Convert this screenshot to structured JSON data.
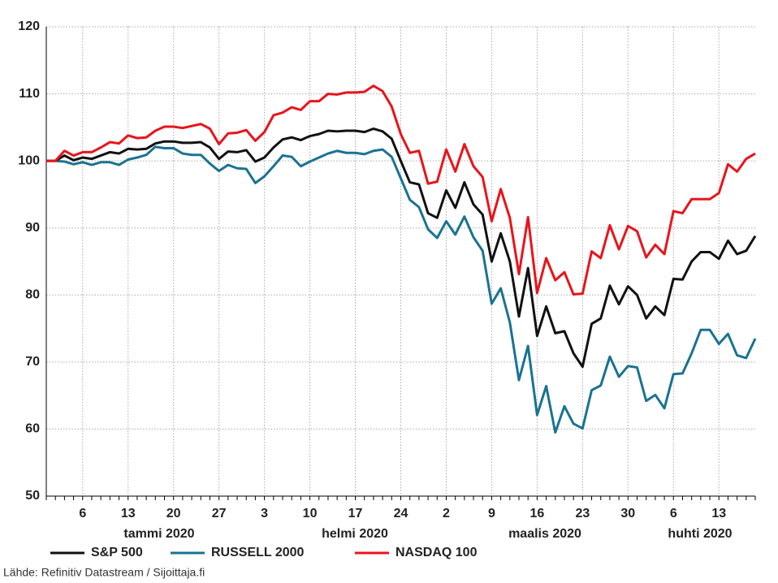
{
  "chart_data": {
    "type": "line",
    "categories": [
      null,
      null,
      null,
      null,
      "6",
      null,
      null,
      null,
      null,
      "13",
      null,
      null,
      null,
      null,
      "20",
      null,
      null,
      null,
      null,
      "27",
      null,
      null,
      null,
      null,
      "3",
      null,
      null,
      null,
      null,
      "10",
      null,
      null,
      null,
      null,
      "17",
      null,
      null,
      null,
      null,
      "24",
      null,
      null,
      null,
      null,
      "2",
      null,
      null,
      null,
      null,
      "9",
      null,
      null,
      null,
      null,
      "16",
      null,
      null,
      null,
      null,
      "23",
      null,
      null,
      null,
      null,
      "30",
      null,
      null,
      null,
      null,
      "6",
      null,
      null,
      null,
      null,
      "13",
      null,
      null,
      null,
      null
    ],
    "months": [
      "tammi 2020",
      "helmi 2020",
      "maalis 2020",
      "huhti 2020"
    ],
    "series": [
      {
        "name": "S&P 500",
        "color": "#111111",
        "values": [
          100,
          100,
          100.8,
          100.1,
          100.5,
          100.3,
          100.8,
          101.3,
          101.1,
          101.8,
          101.7,
          101.8,
          102.6,
          102.9,
          102.9,
          102.7,
          102.7,
          102.8,
          102.0,
          100.3,
          101.4,
          101.3,
          101.6,
          99.9,
          100.5,
          102.0,
          103.2,
          103.5,
          103.1,
          103.7,
          104.0,
          104.5,
          104.4,
          104.5,
          104.5,
          104.3,
          104.8,
          104.4,
          103.3,
          100.0,
          96.8,
          96.5,
          92.2,
          91.5,
          95.6,
          93.0,
          96.8,
          93.5,
          92.0,
          85.0,
          89.2,
          85.0,
          76.8,
          84.0,
          73.9,
          78.3,
          74.3,
          74.6,
          71.3,
          69.3,
          75.7,
          76.5,
          81.4,
          78.6,
          81.3,
          80.0,
          76.5,
          78.3,
          77.0,
          82.4,
          82.3,
          85.0,
          86.4,
          86.4,
          85.4,
          88.1,
          86.1,
          86.6,
          88.8
        ]
      },
      {
        "name": "RUSSELL 2000",
        "color": "#1a7390",
        "values": [
          100,
          100,
          99.9,
          99.5,
          99.8,
          99.4,
          99.8,
          99.8,
          99.4,
          100.2,
          100.5,
          100.9,
          102.1,
          101.9,
          101.9,
          101.1,
          100.9,
          100.9,
          99.6,
          98.5,
          99.4,
          98.9,
          98.8,
          96.7,
          97.7,
          99.2,
          100.8,
          100.6,
          99.2,
          99.9,
          100.5,
          101.1,
          101.5,
          101.2,
          101.2,
          101.0,
          101.5,
          101.7,
          100.6,
          97.4,
          94.2,
          93.1,
          89.8,
          88.5,
          91.0,
          89.0,
          91.7,
          88.6,
          86.6,
          78.7,
          81.0,
          75.9,
          67.3,
          72.4,
          62.1,
          66.4,
          59.5,
          63.4,
          60.8,
          60.1,
          65.8,
          66.5,
          70.8,
          67.8,
          69.4,
          69.2,
          64.2,
          65.1,
          63.1,
          68.2,
          68.3,
          71.3,
          74.8,
          74.8,
          72.7,
          74.2,
          71.0,
          70.6,
          73.5
        ]
      },
      {
        "name": "NASDAQ 100",
        "color": "#e8141b",
        "values": [
          100,
          100,
          101.5,
          100.8,
          101.3,
          101.3,
          102.0,
          102.8,
          102.6,
          103.8,
          103.4,
          103.5,
          104.5,
          105.1,
          105.1,
          104.9,
          105.2,
          105.5,
          104.8,
          102.5,
          104.1,
          104.2,
          104.6,
          103.0,
          104.3,
          106.8,
          107.2,
          108.0,
          107.6,
          108.9,
          108.9,
          110.0,
          109.9,
          110.2,
          110.2,
          110.3,
          111.2,
          110.4,
          108.1,
          104.0,
          101.2,
          101.5,
          96.6,
          96.9,
          101.7,
          98.4,
          102.5,
          99.2,
          97.6,
          91.0,
          95.8,
          91.5,
          83.1,
          91.6,
          80.3,
          85.5,
          82.2,
          83.4,
          80.1,
          80.2,
          86.5,
          85.5,
          90.4,
          86.8,
          90.3,
          89.5,
          85.6,
          87.5,
          86.1,
          92.5,
          92.2,
          94.3,
          94.3,
          94.3,
          95.2,
          99.5,
          98.4,
          100.3,
          101.1
        ]
      }
    ],
    "ylim": [
      50,
      120
    ],
    "yticks": [
      50,
      60,
      70,
      80,
      90,
      100,
      110,
      120
    ],
    "grid": true,
    "source": "Lähde: Refinitiv Datastream / Sijoittaja.fi"
  }
}
